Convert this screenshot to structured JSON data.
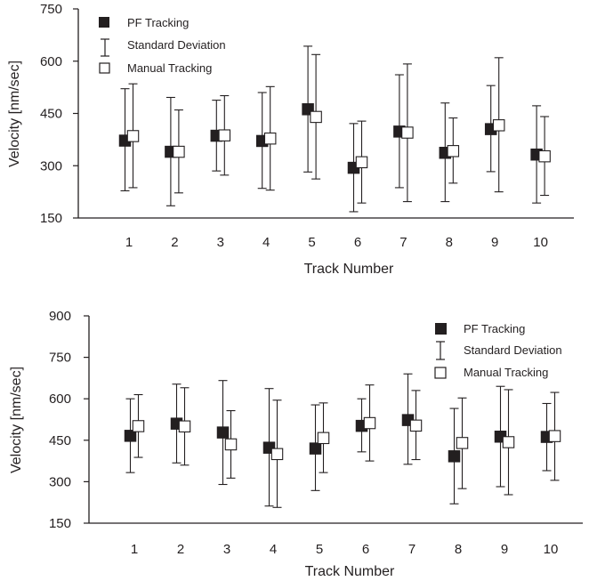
{
  "chart_data": [
    {
      "type": "scatter",
      "xlabel": "Track Number",
      "ylabel": "Velocity [nm/sec]",
      "ylim": [
        150,
        750
      ],
      "yticks": [
        150,
        300,
        450,
        600,
        750
      ],
      "categories": [
        "1",
        "2",
        "3",
        "4",
        "5",
        "6",
        "7",
        "8",
        "9",
        "10"
      ],
      "legend": {
        "placement": "top-left",
        "pf_label": "PF Tracking",
        "sd_label": "Standard Deviation",
        "manual_label": "Manual Tracking"
      },
      "series": [
        {
          "name": "PF Tracking",
          "marker": "filled-square",
          "values": [
            372,
            340,
            386,
            371,
            462,
            294,
            398,
            337,
            405,
            332
          ],
          "sd_low": [
            228,
            185,
            285,
            235,
            282,
            168,
            237,
            197,
            283,
            193
          ],
          "sd_high": [
            521,
            496,
            488,
            510,
            643,
            421,
            561,
            480,
            530,
            472
          ]
        },
        {
          "name": "Manual Tracking",
          "marker": "open-square",
          "values": [
            385,
            340,
            387,
            378,
            440,
            310,
            395,
            342,
            416,
            327
          ],
          "sd_low": [
            237,
            222,
            273,
            230,
            262,
            193,
            197,
            250,
            225,
            215
          ],
          "sd_high": [
            535,
            460,
            501,
            527,
            619,
            428,
            592,
            437,
            610,
            441
          ]
        }
      ],
      "colors": {
        "ink": "#231f20",
        "open_fill": "#ffffff"
      }
    },
    {
      "type": "scatter",
      "xlabel": "Track Number",
      "ylabel": "Velocity [nm/sec]",
      "ylim": [
        150,
        900
      ],
      "yticks": [
        150,
        300,
        450,
        600,
        750,
        900
      ],
      "categories": [
        "1",
        "2",
        "3",
        "4",
        "5",
        "6",
        "7",
        "8",
        "9",
        "10"
      ],
      "legend": {
        "placement": "top-right",
        "pf_label": "PF Tracking",
        "sd_label": "Standard Deviation",
        "manual_label": "Manual Tracking"
      },
      "series": [
        {
          "name": "PF Tracking",
          "marker": "filled-square",
          "values": [
            466,
            510,
            478,
            423,
            420,
            502,
            523,
            392,
            463,
            462
          ],
          "sd_low": [
            333,
            368,
            290,
            212,
            268,
            408,
            363,
            220,
            282,
            340
          ],
          "sd_high": [
            600,
            653,
            666,
            637,
            578,
            600,
            690,
            565,
            645,
            583
          ]
        },
        {
          "name": "Manual Tracking",
          "marker": "open-square",
          "values": [
            501,
            500,
            435,
            400,
            458,
            512,
            503,
            440,
            443,
            465
          ],
          "sd_low": [
            388,
            360,
            313,
            207,
            333,
            375,
            380,
            275,
            253,
            305
          ],
          "sd_high": [
            615,
            640,
            557,
            595,
            585,
            650,
            630,
            603,
            633,
            623
          ]
        }
      ],
      "colors": {
        "ink": "#231f20",
        "open_fill": "#ffffff"
      }
    }
  ]
}
